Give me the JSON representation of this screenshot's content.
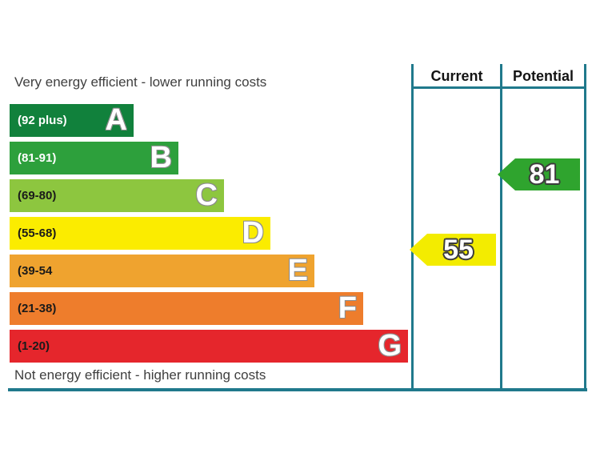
{
  "labels": {
    "top": "Very energy efficient - lower running costs",
    "bottom": "Not energy efficient - higher running costs"
  },
  "columns": {
    "current": "Current",
    "potential": "Potential"
  },
  "bands": [
    {
      "letter": "A",
      "range": "(92 plus)",
      "color": "#11813c",
      "range_color": "#ffffff"
    },
    {
      "letter": "B",
      "range": "(81-91)",
      "color": "#2da03c",
      "range_color": "#ffffff"
    },
    {
      "letter": "C",
      "range": "(69-80)",
      "color": "#8dc63f",
      "range_color": "#1a1a1a"
    },
    {
      "letter": "D",
      "range": "(55-68)",
      "color": "#fbec00",
      "range_color": "#1a1a1a"
    },
    {
      "letter": "E",
      "range": "(39-54",
      "color": "#efa32f",
      "range_color": "#1a1a1a"
    },
    {
      "letter": "F",
      "range": "(21-38)",
      "color": "#ee7d2c",
      "range_color": "#1a1a1a"
    },
    {
      "letter": "G",
      "range": "(1-20)",
      "color": "#e5262c",
      "range_color": "#1a1a1a"
    }
  ],
  "markers": {
    "current": {
      "value": "55",
      "color": "#f3ec00"
    },
    "potential": {
      "value": "81",
      "color": "#2fa42e"
    }
  },
  "accent": {
    "border_teal": "#20798c"
  },
  "chart_data": {
    "type": "bar",
    "categories": [
      "A",
      "B",
      "C",
      "D",
      "E",
      "F",
      "G"
    ],
    "band_ranges": [
      "(92 plus)",
      "(81-91)",
      "(69-80)",
      "(55-68)",
      "(39-54",
      "(21-38)",
      "(1-20)"
    ],
    "band_colors": [
      "#11813c",
      "#2da03c",
      "#8dc63f",
      "#fbec00",
      "#efa32f",
      "#ee7d2c",
      "#e5262c"
    ],
    "series": [
      {
        "name": "Current",
        "value": 55,
        "band": "D",
        "marker_color": "#f3ec00"
      },
      {
        "name": "Potential",
        "value": 81,
        "band": "B",
        "marker_color": "#2fa42e"
      }
    ],
    "top_label": "Very energy efficient - lower running costs",
    "bottom_label": "Not energy efficient - higher running costs",
    "column_headers": [
      "Current",
      "Potential"
    ],
    "grid": false,
    "legend_position": "none"
  }
}
